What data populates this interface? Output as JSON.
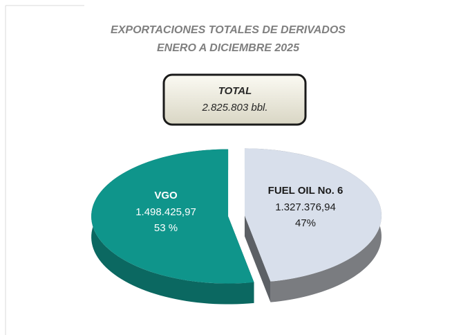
{
  "chart_data": {
    "type": "pie",
    "title": "EXPORTACIONES TOTALES DE DERIVADOS",
    "subtitle": "ENERO A DICIEMBRE 2025",
    "total_label": "TOTAL",
    "total_value": "2.825.803 bbl.",
    "categories": [
      "FUEL OIL No. 6",
      "VGO"
    ],
    "values": [
      1327376.94,
      1498425.97
    ],
    "value_labels": [
      "1.327.376,94",
      "1.498.425,97"
    ],
    "percent_labels": [
      "47%",
      "53 %"
    ],
    "colors": [
      "#d8dfeb",
      "#0f958b"
    ]
  }
}
